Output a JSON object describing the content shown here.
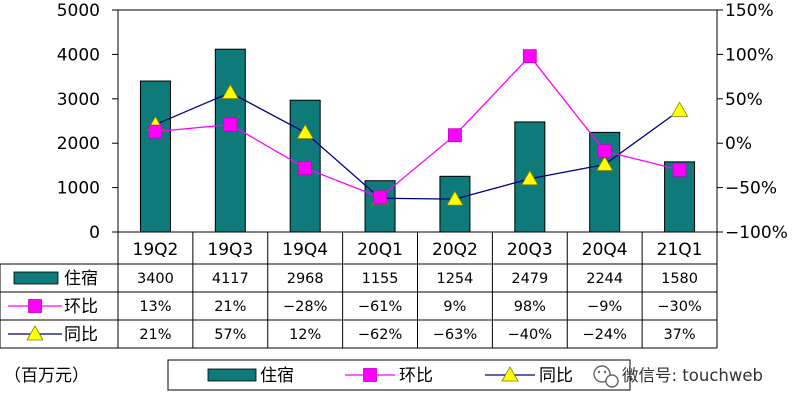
{
  "chart_data": {
    "type": "bar",
    "categories": [
      "19Q2",
      "19Q3",
      "19Q4",
      "20Q1",
      "20Q2",
      "20Q3",
      "20Q4",
      "21Q1"
    ],
    "series": [
      {
        "name": "住宿",
        "type": "bar",
        "axis": "left",
        "color": "#0e7a7a",
        "values": [
          3400,
          4117,
          2968,
          1155,
          1254,
          2479,
          2244,
          1580
        ],
        "labels": [
          "3400",
          "4117",
          "2968",
          "1155",
          "1254",
          "2479",
          "2244",
          "1580"
        ]
      },
      {
        "name": "环比",
        "type": "line",
        "axis": "right",
        "color": "#ff00ff",
        "marker": "square",
        "values": [
          13,
          21,
          -28,
          -61,
          9,
          98,
          -9,
          -30
        ],
        "labels": [
          "13%",
          "21%",
          "−28%",
          "−61%",
          "9%",
          "98%",
          "−9%",
          "−30%"
        ]
      },
      {
        "name": "同比",
        "type": "line",
        "axis": "right",
        "color": "#000080",
        "marker": "triangle",
        "marker_color": "#ffff00",
        "values": [
          21,
          57,
          12,
          -62,
          -63,
          -40,
          -24,
          37
        ],
        "labels": [
          "21%",
          "57%",
          "12%",
          "−62%",
          "−63%",
          "−40%",
          "−24%",
          "37%"
        ]
      }
    ],
    "y_left": {
      "range": [
        0,
        5000
      ],
      "ticks": [
        "0",
        "1000",
        "2000",
        "3000",
        "4000",
        "5000"
      ]
    },
    "y_right": {
      "range": [
        -100,
        150
      ],
      "ticks": [
        "−100%",
        "−50%",
        "0%",
        "50%",
        "100%",
        "150%"
      ]
    },
    "unit_label": "（百万元）",
    "legend": {
      "position": "bottom",
      "items": [
        "住宿",
        "环比",
        "同比"
      ]
    },
    "data_table": true
  },
  "watermark": {
    "text": "微信号: touchweb"
  }
}
